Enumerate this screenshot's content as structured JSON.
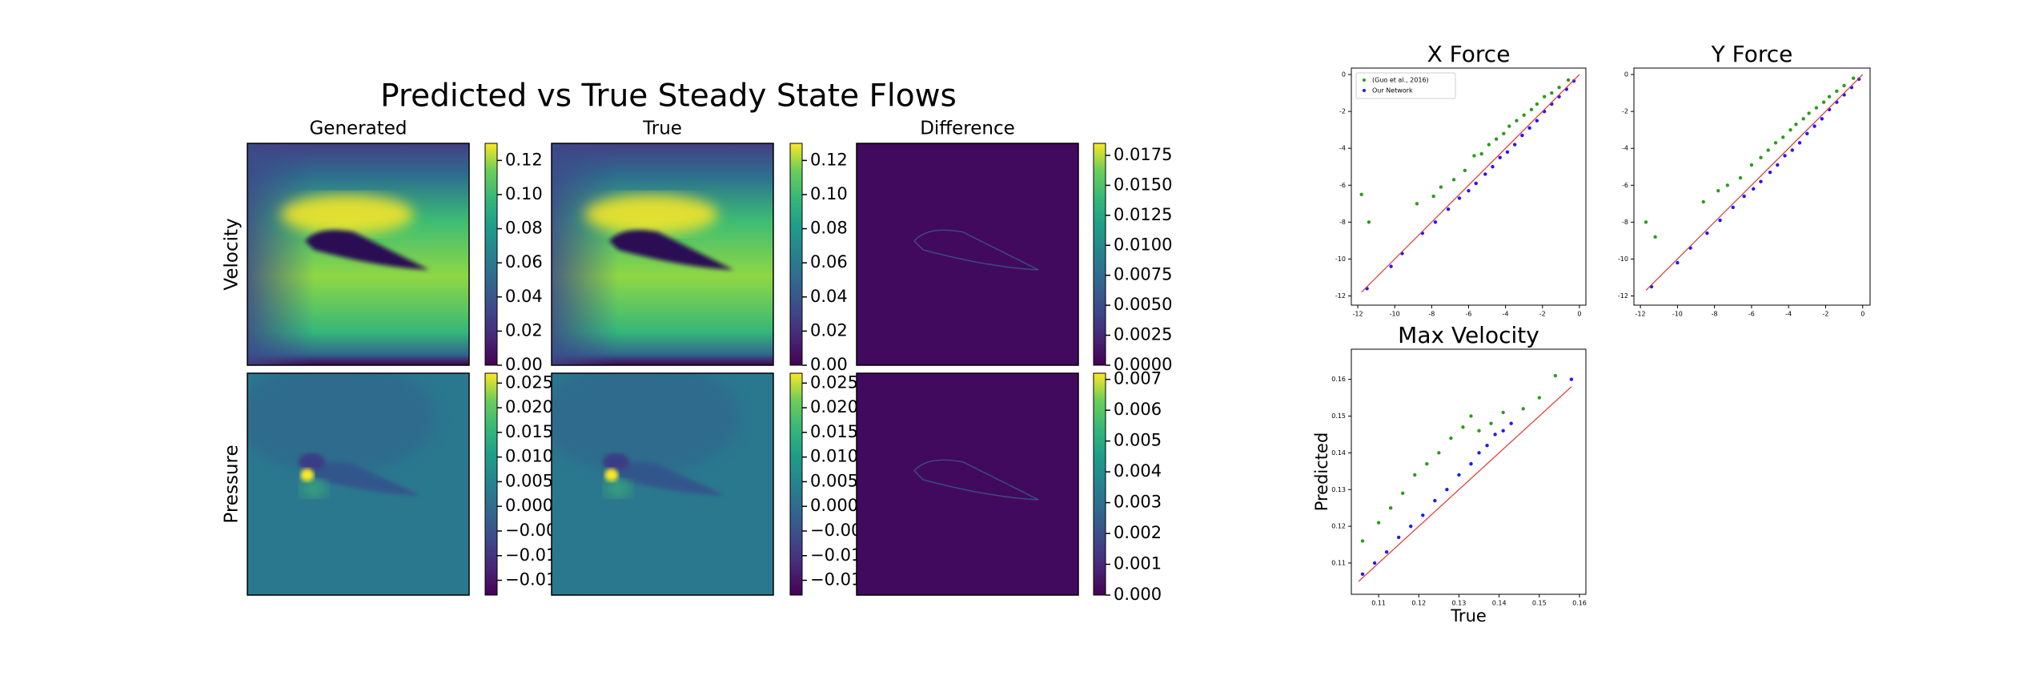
{
  "flows": {
    "title": "Predicted vs True Steady State Flows",
    "columns": [
      "Generated",
      "True",
      "Difference"
    ],
    "rows": [
      "Velocity",
      "Pressure"
    ],
    "colorbars": [
      [
        {
          "lim": [
            0,
            0.13
          ],
          "ticks": [
            {
              "value": 0,
              "label": "0.00"
            },
            0.02,
            0.04,
            0.06,
            0.08,
            {
              "value": 0.1,
              "label": "0.10"
            },
            0.12
          ]
        },
        {
          "lim": [
            0,
            0.13
          ],
          "ticks": [
            {
              "value": 0,
              "label": "0.00"
            },
            0.02,
            0.04,
            0.06,
            0.08,
            {
              "value": 0.1,
              "label": "0.10"
            },
            0.12
          ]
        },
        {
          "lim": [
            0,
            0.0185
          ],
          "ticks": [
            {
              "value": 0,
              "label": "0.0000"
            },
            0.0025,
            {
              "value": 0.005,
              "label": "0.0050"
            },
            0.0075,
            {
              "value": 0.01,
              "label": "0.0100"
            },
            0.0125,
            {
              "value": 0.015,
              "label": "0.0150"
            },
            0.0175
          ]
        }
      ],
      [
        {
          "lim": [
            -0.018,
            0.027
          ],
          "ticks": [
            0.025,
            {
              "value": 0.02,
              "label": "0.020"
            },
            0.015,
            {
              "value": 0.01,
              "label": "0.010"
            },
            0.005,
            {
              "value": 0,
              "label": "0.000"
            },
            {
              "value": -0.005,
              "label": "−0.00"
            },
            {
              "value": -0.01,
              "label": "−0.01"
            },
            {
              "value": -0.015,
              "label": "−0.01"
            }
          ]
        },
        {
          "lim": [
            -0.018,
            0.027
          ],
          "ticks": [
            0.025,
            {
              "value": 0.02,
              "label": "0.020"
            },
            0.015,
            {
              "value": 0.01,
              "label": "0.010"
            },
            0.005,
            {
              "value": 0,
              "label": "0.000"
            },
            {
              "value": -0.005,
              "label": "−0.00"
            },
            {
              "value": -0.01,
              "label": "−0.01"
            },
            {
              "value": -0.015,
              "label": "−0.01"
            }
          ]
        },
        {
          "lim": [
            0,
            0.0072
          ],
          "ticks": [
            {
              "value": 0,
              "label": "0.000"
            },
            0.001,
            0.002,
            0.003,
            0.004,
            0.005,
            0.006,
            0.007
          ]
        }
      ]
    ]
  },
  "chart_data": [
    {
      "type": "scatter",
      "title": "X Force",
      "xlim": [
        -12.35,
        0.35
      ],
      "ylim": [
        -12.5,
        0.35
      ],
      "xticks": [
        -12,
        -10,
        -8,
        -6,
        -4,
        -2,
        0
      ],
      "yticks": [
        -12,
        -10,
        -8,
        -6,
        -4,
        -2,
        0
      ],
      "legend": "upper left",
      "reference_line": {
        "color": "#e8322c",
        "x": [
          -11.8,
          0
        ],
        "y": [
          -11.8,
          0
        ]
      },
      "series": [
        {
          "name": "(Guo et al., 2016)",
          "color": "#2e9a1f",
          "x": [
            -11.8,
            -11.4,
            -8.8,
            -7.9,
            -7.5,
            -6.8,
            -6.2,
            -5.7,
            -5.3,
            -4.9,
            -4.5,
            -4.1,
            -3.8,
            -3.4,
            -3.0,
            -2.6,
            -2.3,
            -1.9,
            -1.5,
            -1.1,
            -0.6
          ],
          "values": [
            -6.5,
            -8.0,
            -7.0,
            -6.6,
            -6.1,
            -5.7,
            -5.2,
            -4.4,
            -4.3,
            -3.8,
            -3.5,
            -3.2,
            -2.8,
            -2.5,
            -2.2,
            -1.9,
            -1.6,
            -1.2,
            -1.0,
            -0.7,
            -0.3
          ]
        },
        {
          "name": "Our Network",
          "color": "#1a1aff",
          "x": [
            -11.5,
            -10.2,
            -9.6,
            -8.5,
            -7.8,
            -7.1,
            -6.5,
            -6.0,
            -5.6,
            -5.1,
            -4.7,
            -4.3,
            -3.9,
            -3.5,
            -3.1,
            -2.7,
            -2.3,
            -1.9,
            -1.5,
            -1.1,
            -0.7,
            -0.3
          ],
          "values": [
            -11.6,
            -10.4,
            -9.7,
            -8.6,
            -8.0,
            -7.3,
            -6.7,
            -6.3,
            -5.9,
            -5.4,
            -5.0,
            -4.5,
            -4.2,
            -3.8,
            -3.3,
            -2.9,
            -2.5,
            -2.0,
            -1.6,
            -1.2,
            -0.8,
            -0.35
          ]
        }
      ]
    },
    {
      "type": "scatter",
      "title": "Y Force",
      "xlim": [
        -12.35,
        0.4
      ],
      "ylim": [
        -12.5,
        0.35
      ],
      "xticks": [
        -12,
        -10,
        -8,
        -6,
        -4,
        -2,
        0
      ],
      "yticks": [
        -12,
        -10,
        -8,
        -6,
        -4,
        -2,
        0
      ],
      "reference_line": {
        "color": "#e8322c",
        "x": [
          -11.7,
          0
        ],
        "y": [
          -11.7,
          0
        ]
      },
      "series": [
        {
          "color": "#2e9a1f",
          "x": [
            -11.7,
            -11.2,
            -8.6,
            -7.8,
            -7.3,
            -6.6,
            -6.0,
            -5.5,
            -5.1,
            -4.7,
            -4.3,
            -3.9,
            -3.6,
            -3.2,
            -2.9,
            -2.5,
            -2.1,
            -1.8,
            -1.4,
            -1.0,
            -0.5
          ],
          "values": [
            -8.0,
            -8.8,
            -6.9,
            -6.3,
            -6.0,
            -5.6,
            -4.9,
            -4.5,
            -4.1,
            -3.7,
            -3.4,
            -3.0,
            -2.7,
            -2.4,
            -2.1,
            -1.8,
            -1.5,
            -1.2,
            -0.9,
            -0.6,
            -0.2
          ]
        },
        {
          "color": "#1a1aff",
          "x": [
            -11.4,
            -10.0,
            -9.3,
            -8.4,
            -7.7,
            -7.0,
            -6.4,
            -5.9,
            -5.5,
            -5.0,
            -4.6,
            -4.2,
            -3.8,
            -3.4,
            -3.0,
            -2.6,
            -2.2,
            -1.8,
            -1.4,
            -1.0,
            -0.6,
            -0.2
          ],
          "values": [
            -11.5,
            -10.2,
            -9.4,
            -8.6,
            -7.9,
            -7.2,
            -6.6,
            -6.2,
            -5.8,
            -5.3,
            -4.9,
            -4.4,
            -4.1,
            -3.7,
            -3.2,
            -2.8,
            -2.4,
            -1.9,
            -1.5,
            -1.1,
            -0.7,
            -0.25
          ]
        }
      ]
    },
    {
      "type": "scatter",
      "title": "Max Velocity",
      "xlabel": "True",
      "ylabel": "Predicted",
      "xlim": [
        0.1032,
        0.1616
      ],
      "ylim": [
        0.1015,
        0.1682
      ],
      "xticks": [
        0.11,
        0.12,
        0.13,
        0.14,
        0.15,
        0.16
      ],
      "yticks": [
        0.11,
        0.12,
        0.13,
        0.14,
        0.15,
        0.16
      ],
      "reference_line": {
        "color": "#e8322c",
        "x": [
          0.105,
          0.158
        ],
        "y": [
          0.105,
          0.158
        ]
      },
      "series": [
        {
          "color": "#2e9a1f",
          "x": [
            0.106,
            0.11,
            0.113,
            0.116,
            0.119,
            0.122,
            0.125,
            0.128,
            0.131,
            0.133,
            0.135,
            0.138,
            0.141,
            0.146,
            0.15,
            0.154
          ],
          "values": [
            0.116,
            0.121,
            0.125,
            0.129,
            0.134,
            0.137,
            0.14,
            0.144,
            0.147,
            0.15,
            0.146,
            0.148,
            0.151,
            0.152,
            0.155,
            0.161
          ]
        },
        {
          "color": "#1a1aff",
          "x": [
            0.106,
            0.109,
            0.112,
            0.115,
            0.118,
            0.121,
            0.124,
            0.127,
            0.13,
            0.133,
            0.135,
            0.137,
            0.139,
            0.141,
            0.143,
            0.158
          ],
          "values": [
            0.107,
            0.11,
            0.113,
            0.117,
            0.12,
            0.123,
            0.127,
            0.13,
            0.134,
            0.137,
            0.14,
            0.142,
            0.145,
            0.146,
            0.148,
            0.16
          ]
        }
      ]
    }
  ]
}
